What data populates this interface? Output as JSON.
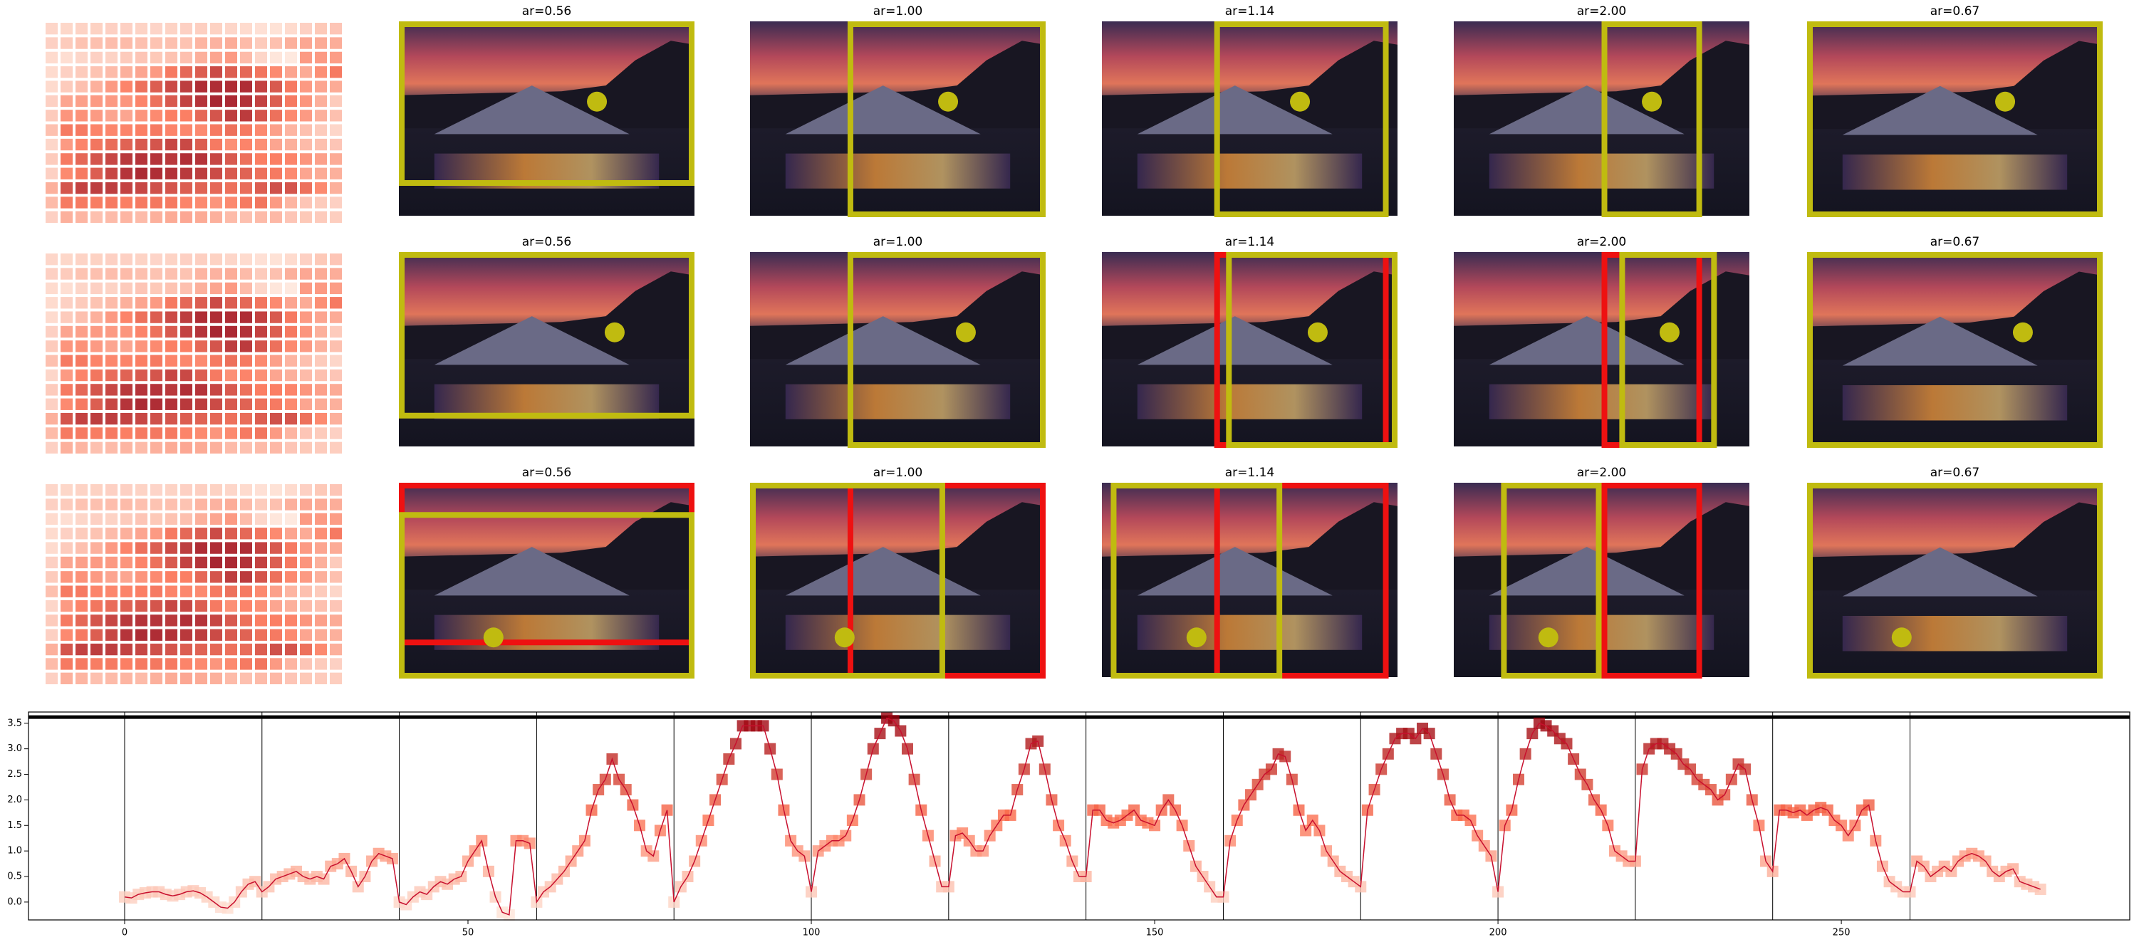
{
  "panels": [
    [
      "ar=0.56",
      "ar=1.00",
      "ar=1.14",
      "ar=2.00",
      "ar=0.67"
    ],
    [
      "ar=0.56",
      "ar=1.00",
      "ar=1.14",
      "ar=2.00",
      "ar=0.67"
    ],
    [
      "ar=0.56",
      "ar=1.00",
      "ar=1.14",
      "ar=2.00",
      "ar=0.67"
    ]
  ],
  "chart_data": {
    "type": "line",
    "x": [
      0,
      1,
      2,
      3,
      4,
      5,
      6,
      7,
      8,
      9,
      10,
      11,
      12,
      13,
      14,
      15,
      16,
      17,
      18,
      19,
      20,
      21,
      22,
      23,
      24,
      25,
      26,
      27,
      28,
      29,
      30,
      31,
      32,
      33,
      34,
      35,
      36,
      37,
      38,
      39,
      40,
      41,
      42,
      43,
      44,
      45,
      46,
      47,
      48,
      49,
      50,
      51,
      52,
      53,
      54,
      55,
      56,
      57,
      58,
      59,
      60,
      61,
      62,
      63,
      64,
      65,
      66,
      67,
      68,
      69,
      70,
      71,
      72,
      73,
      74,
      75,
      76,
      77,
      78,
      79,
      80,
      81,
      82,
      83,
      84,
      85,
      86,
      87,
      88,
      89,
      90,
      91,
      92,
      93,
      94,
      95,
      96,
      97,
      98,
      99,
      100,
      101,
      102,
      103,
      104,
      105,
      106,
      107,
      108,
      109,
      110,
      111,
      112,
      113,
      114,
      115,
      116,
      117,
      118,
      119,
      120,
      121,
      122,
      123,
      124,
      125,
      126,
      127,
      128,
      129,
      130,
      131,
      132,
      133,
      134,
      135,
      136,
      137,
      138,
      139,
      140,
      141,
      142,
      143,
      144,
      145,
      146,
      147,
      148,
      149,
      150,
      151,
      152,
      153,
      154,
      155,
      156,
      157,
      158,
      159,
      160,
      161,
      162,
      163,
      164,
      165,
      166,
      167,
      168,
      169,
      170,
      171,
      172,
      173,
      174,
      175,
      176,
      177,
      178,
      179,
      180,
      181,
      182,
      183,
      184,
      185,
      186,
      187,
      188,
      189,
      190,
      191,
      192,
      193,
      194,
      195,
      196,
      197,
      198,
      199,
      200,
      201,
      202,
      203,
      204,
      205,
      206,
      207,
      208,
      209,
      210,
      211,
      212,
      213,
      214,
      215,
      216,
      217,
      218,
      219,
      220,
      221,
      222,
      223,
      224,
      225,
      226,
      227,
      228,
      229,
      230,
      231,
      232,
      233,
      234,
      235,
      236,
      237,
      238,
      239,
      240,
      241,
      242,
      243,
      244,
      245,
      246,
      247,
      248,
      249,
      250,
      251,
      252,
      253,
      254,
      255,
      256,
      257,
      258,
      259,
      260,
      261,
      262,
      263,
      264,
      265,
      266,
      267,
      268,
      269,
      270,
      271,
      272,
      273,
      274,
      275,
      276,
      277,
      278,
      279
    ],
    "values": [
      0.1,
      0.08,
      0.15,
      0.18,
      0.2,
      0.2,
      0.15,
      0.12,
      0.15,
      0.2,
      0.22,
      0.18,
      0.1,
      0.0,
      -0.1,
      -0.12,
      0.0,
      0.2,
      0.35,
      0.4,
      0.2,
      0.3,
      0.45,
      0.5,
      0.55,
      0.6,
      0.5,
      0.45,
      0.5,
      0.45,
      0.7,
      0.75,
      0.85,
      0.6,
      0.3,
      0.5,
      0.8,
      0.95,
      0.9,
      0.85,
      0.0,
      -0.05,
      0.1,
      0.2,
      0.15,
      0.3,
      0.4,
      0.35,
      0.45,
      0.5,
      0.8,
      1.0,
      1.2,
      0.6,
      0.1,
      -0.2,
      -0.25,
      1.2,
      1.2,
      1.15,
      0.0,
      0.2,
      0.3,
      0.45,
      0.6,
      0.8,
      1.0,
      1.2,
      1.8,
      2.2,
      2.4,
      2.8,
      2.4,
      2.2,
      1.9,
      1.5,
      1.0,
      0.9,
      1.4,
      1.8,
      0.0,
      0.3,
      0.5,
      0.8,
      1.2,
      1.6,
      2.0,
      2.4,
      2.8,
      3.1,
      3.45,
      3.45,
      3.45,
      3.45,
      3.0,
      2.5,
      1.8,
      1.2,
      1.0,
      0.9,
      0.2,
      1.0,
      1.1,
      1.2,
      1.2,
      1.3,
      1.6,
      2.0,
      2.5,
      3.0,
      3.3,
      3.6,
      3.55,
      3.35,
      3.0,
      2.4,
      1.8,
      1.3,
      0.8,
      0.3,
      0.3,
      1.3,
      1.35,
      1.2,
      1.0,
      1.0,
      1.3,
      1.5,
      1.7,
      1.7,
      2.2,
      2.6,
      3.1,
      3.15,
      2.6,
      2.0,
      1.5,
      1.2,
      0.8,
      0.5,
      0.5,
      1.8,
      1.8,
      1.6,
      1.55,
      1.6,
      1.7,
      1.8,
      1.6,
      1.55,
      1.5,
      1.8,
      2.0,
      1.8,
      1.5,
      1.1,
      0.7,
      0.5,
      0.3,
      0.1,
      0.1,
      1.2,
      1.6,
      1.9,
      2.1,
      2.3,
      2.5,
      2.6,
      2.9,
      2.85,
      2.4,
      1.8,
      1.4,
      1.6,
      1.4,
      1.0,
      0.8,
      0.6,
      0.5,
      0.4,
      0.3,
      1.8,
      2.2,
      2.6,
      2.9,
      3.2,
      3.3,
      3.3,
      3.2,
      3.4,
      3.3,
      2.9,
      2.5,
      2.0,
      1.7,
      1.7,
      1.6,
      1.3,
      1.1,
      0.9,
      0.2,
      1.5,
      1.8,
      2.4,
      2.9,
      3.3,
      3.5,
      3.45,
      3.35,
      3.2,
      3.1,
      2.8,
      2.5,
      2.3,
      2.0,
      1.8,
      1.5,
      1.0,
      0.9,
      0.8,
      0.8,
      2.6,
      3.0,
      3.1,
      3.1,
      3.0,
      2.9,
      2.7,
      2.6,
      2.4,
      2.3,
      2.2,
      2.0,
      2.1,
      2.4,
      2.7,
      2.6,
      2.0,
      1.5,
      0.8,
      0.6,
      1.8,
      1.8,
      1.75,
      1.8,
      1.7,
      1.8,
      1.85,
      1.8,
      1.6,
      1.5,
      1.3,
      1.5,
      1.8,
      1.9,
      1.2,
      0.7,
      0.4,
      0.3,
      0.2,
      0.2,
      0.8,
      0.7,
      0.5,
      0.6,
      0.7,
      0.6,
      0.8,
      0.9,
      0.95,
      0.9,
      0.8,
      0.6,
      0.5,
      0.6,
      0.65,
      0.4,
      0.35,
      0.3,
      0.25
    ],
    "heatmap_columns": 20,
    "line_color": "#c8102e",
    "cmap": [
      "#fee5d9",
      "#fb6a4a",
      "#99000d"
    ],
    "xlim": [
      -14,
      292
    ],
    "ylim": [
      -0.35,
      3.72
    ],
    "xticks": [
      0,
      50,
      100,
      150,
      200,
      250
    ],
    "yticks": [
      {
        "value": 0,
        "label": "0.0"
      },
      0.5,
      {
        "value": 1,
        "label": "1.0"
      },
      1.5,
      {
        "value": 2,
        "label": "2.0"
      },
      2.5,
      {
        "value": 3,
        "label": "3.0"
      },
      3.5
    ],
    "vlines": [
      0,
      20,
      40,
      60,
      80,
      100,
      120,
      140,
      160,
      180,
      200,
      220,
      240,
      260
    ],
    "hline": 3.62
  }
}
